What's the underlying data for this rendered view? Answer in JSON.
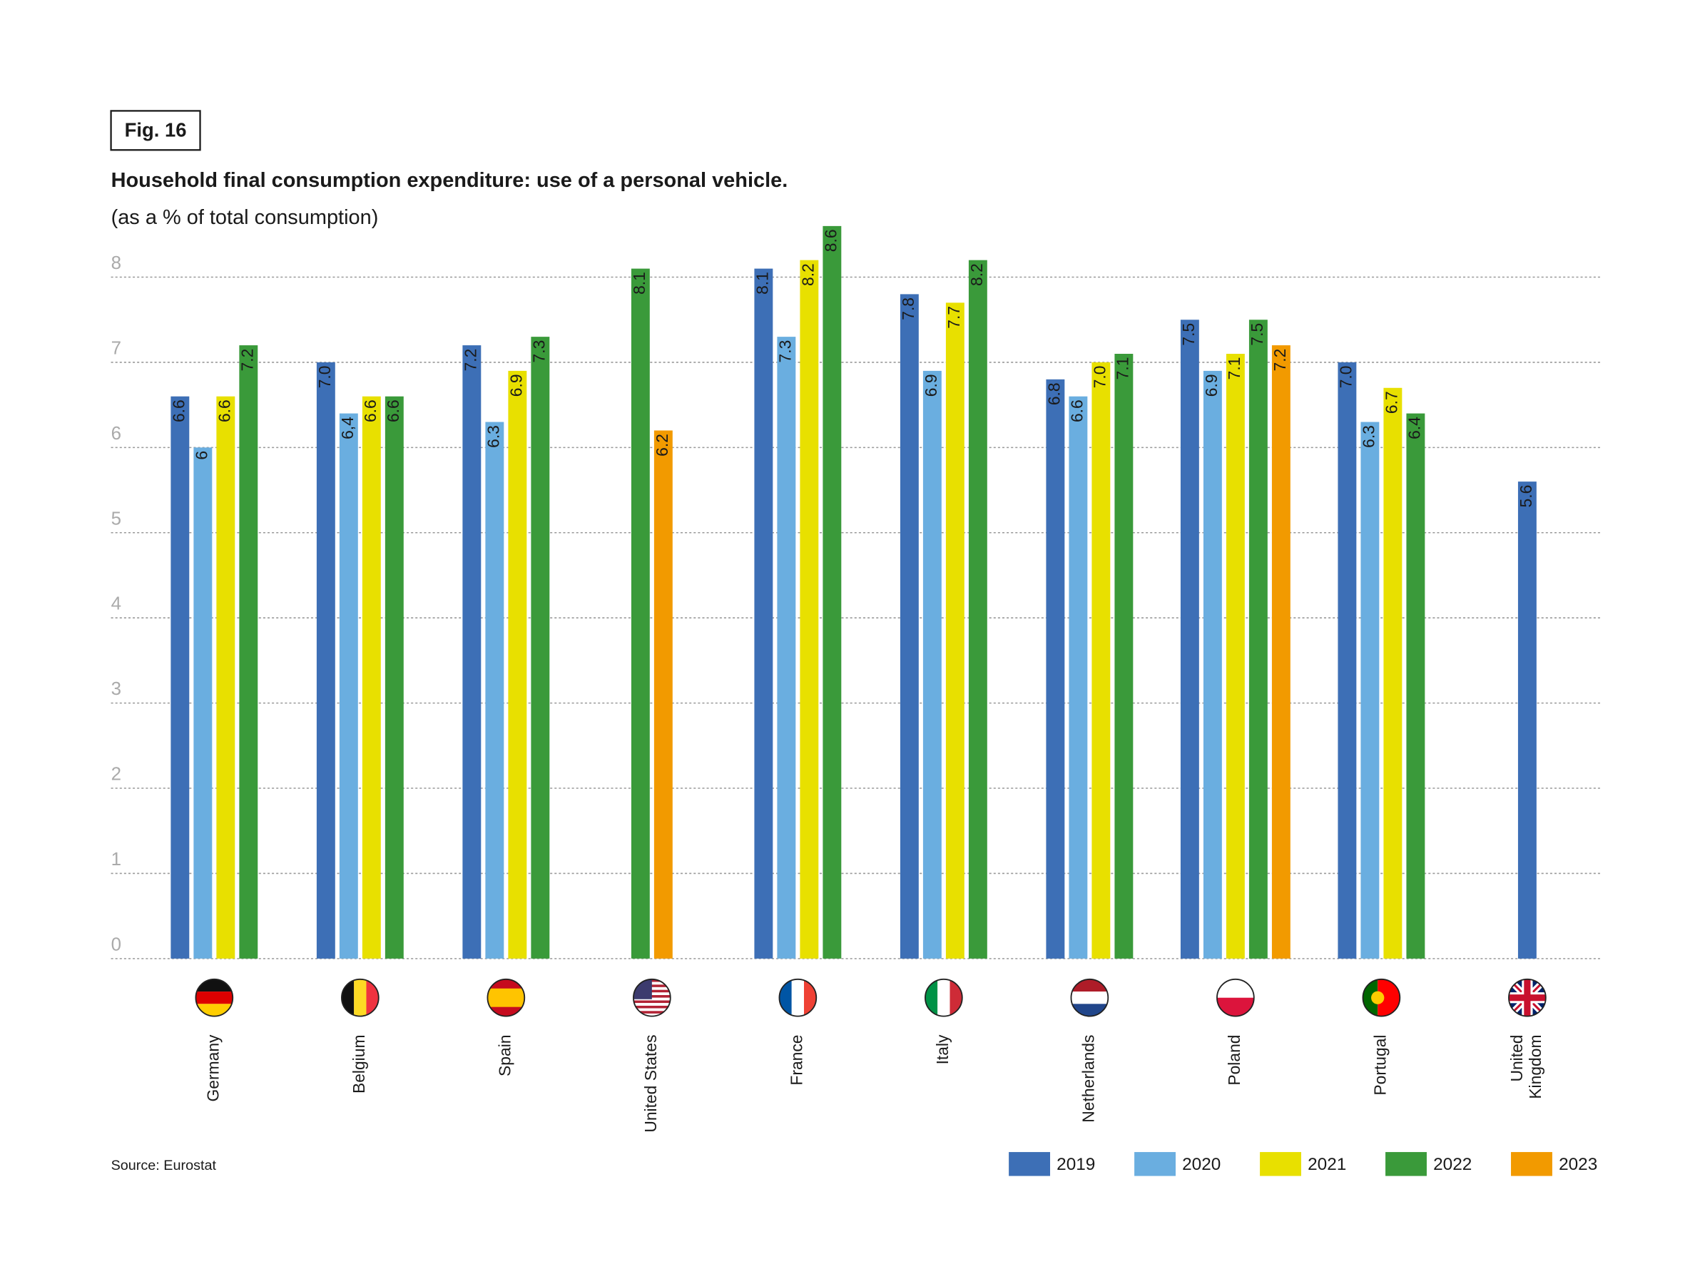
{
  "figure_label": "Fig. 16",
  "source": "Source: Eurostat",
  "chart_data": {
    "type": "bar",
    "title": "Household final consumption expenditure: use of a personal vehicle.",
    "subtitle": "(as a % of total consumption)",
    "categories": [
      "Germany",
      "Belgium",
      "Spain",
      "United States",
      "France",
      "Italy",
      "Netherlands",
      "Poland",
      "Portugal",
      "United\nKingdom"
    ],
    "series": [
      {
        "name": "2019",
        "color": "#3d6fb6",
        "values": [
          6.6,
          7.0,
          7.2,
          null,
          8.1,
          7.8,
          6.8,
          7.5,
          7.0,
          5.6
        ],
        "value_labels": [
          "6.6",
          "7.0",
          "7.2",
          null,
          "8.1",
          "7.8",
          "6.8",
          "7.5",
          "7.0",
          "5.6"
        ]
      },
      {
        "name": "2020",
        "color": "#6aaee0",
        "values": [
          6,
          6.4,
          6.3,
          null,
          7.3,
          6.9,
          6.6,
          6.9,
          6.3,
          null
        ],
        "value_labels": [
          "6",
          "6,4",
          "6.3",
          null,
          "7.3",
          "6.9",
          "6.6",
          "6.9",
          "6.3",
          null
        ]
      },
      {
        "name": "2021",
        "color": "#e8e000",
        "values": [
          6.6,
          6.6,
          6.9,
          null,
          8.2,
          7.7,
          7.0,
          7.1,
          6.7,
          null
        ],
        "value_labels": [
          "6.6",
          "6.6",
          "6.9",
          null,
          "8.2",
          "7.7",
          "7.0",
          "7.1",
          "6.7",
          null
        ]
      },
      {
        "name": "2022",
        "color": "#3a9a3a",
        "values": [
          7.2,
          6.6,
          7.3,
          8.1,
          8.6,
          8.2,
          7.1,
          7.5,
          6.4,
          null
        ],
        "value_labels": [
          "7.2",
          "6.6",
          "7.3",
          "8.1",
          "8.6",
          "8.2",
          "7.1",
          "7.5",
          "6.4",
          null
        ]
      },
      {
        "name": "2023",
        "color": "#f29a00",
        "values": [
          null,
          null,
          null,
          6.2,
          null,
          null,
          null,
          7.2,
          null,
          null
        ],
        "value_labels": [
          null,
          null,
          null,
          "6.2",
          null,
          null,
          null,
          "7.2",
          null,
          null
        ]
      }
    ],
    "ylim": [
      0,
      8
    ],
    "yticks": [
      0,
      1,
      2,
      3,
      4,
      5,
      6,
      7,
      8
    ],
    "grid": true
  }
}
